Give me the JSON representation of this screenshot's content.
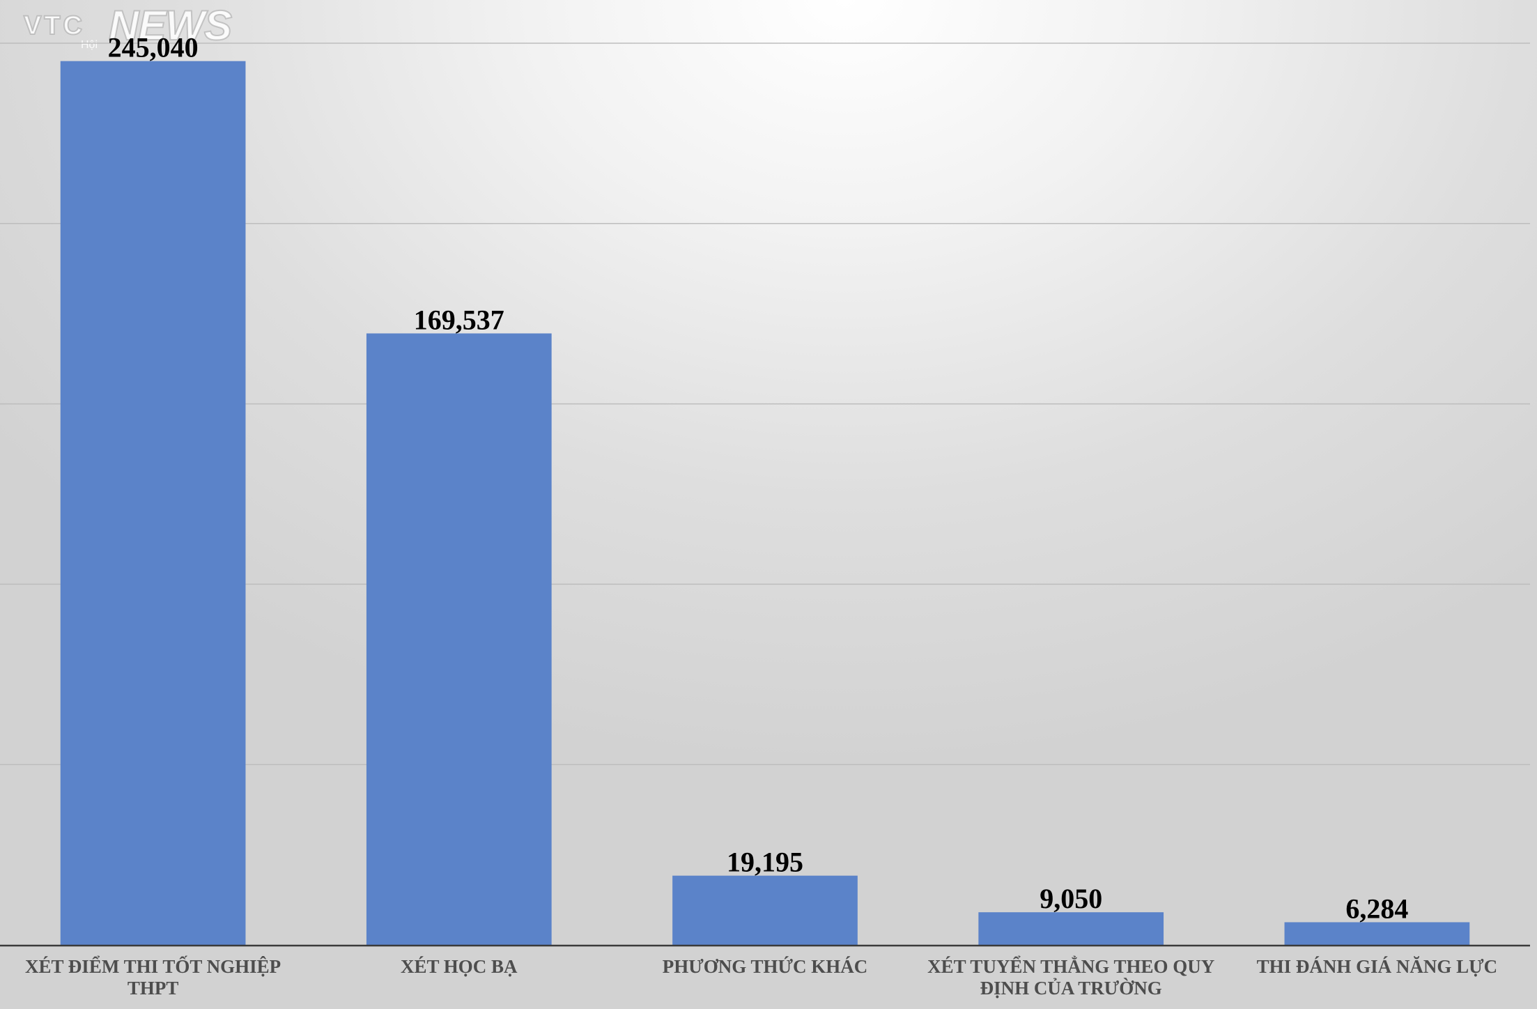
{
  "watermark": {
    "brand_prefix": "VTC",
    "brand_suffix": "NEWS",
    "sub": "Hội"
  },
  "chart_data": {
    "type": "bar",
    "categories": [
      [
        "XÉT ĐIỂM THI TỐT NGHIỆP",
        "THPT"
      ],
      [
        "XÉT HỌC BẠ"
      ],
      [
        "PHƯƠNG THỨC KHÁC"
      ],
      [
        "XÉT TUYỂN THẲNG THEO QUY",
        "ĐỊNH CỦA TRƯỜNG"
      ],
      [
        "THI ĐÁNH GIÁ NĂNG LỰC"
      ]
    ],
    "values": [
      245040,
      169537,
      19195,
      9050,
      6284
    ],
    "data_labels": [
      "245,040",
      "169,537",
      "19,195",
      "9,050",
      "6,284"
    ],
    "ylim": [
      0,
      250000
    ],
    "gridlines": [
      0,
      50000,
      100000,
      150000,
      200000,
      250000
    ],
    "grid": true,
    "legend": "none",
    "bar_color": "#5b83c9",
    "title": "",
    "xlabel": "",
    "ylabel": ""
  }
}
